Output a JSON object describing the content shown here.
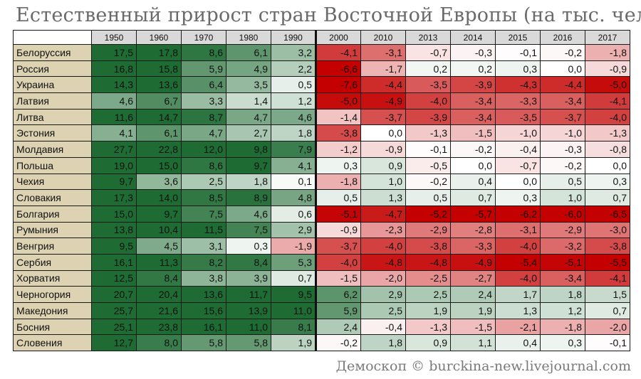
{
  "title": "Естественный прирост стран Восточной Европы (на тыс. чел)",
  "credit": "Демоскоп © burckina-new.livejournal.com",
  "chart_data": {
    "type": "table",
    "title": "Естественный прирост стран Восточной Европы (на тыс. чел)",
    "years": [
      "1950",
      "1960",
      "1970",
      "1980",
      "1990",
      "2000",
      "2010",
      "2013",
      "2014",
      "2015",
      "2016",
      "2017"
    ],
    "rows": [
      {
        "country": "Белоруссия",
        "values": [
          "17,5",
          "17,8",
          "8,6",
          "6,1",
          "3,2",
          "-4,1",
          "-3,1",
          "-0,7",
          "-0,3",
          "-0,1",
          "-0,2",
          "-1,8"
        ]
      },
      {
        "country": "Россия",
        "values": [
          "16,8",
          "15,8",
          "5,9",
          "4,9",
          "2,2",
          "-6,6",
          "-1,7",
          "0,2",
          "0,2",
          "0,3",
          "0,0",
          "-0,9"
        ]
      },
      {
        "country": "Украина",
        "values": [
          "14,3",
          "13,6",
          "6,4",
          "3,5",
          "0,5",
          "-7,6",
          "-4,4",
          "-3,5",
          "-3,9",
          "-4,3",
          "-4,4",
          "-5,0"
        ]
      },
      {
        "country": "Латвия",
        "values": [
          "4,6",
          "6,7",
          "3,3",
          "1,4",
          "1,2",
          "-5,0",
          "-4,9",
          "-4,0",
          "-3,4",
          "-3,3",
          "-3,4",
          "-4,1"
        ]
      },
      {
        "country": "Литва",
        "values": [
          "11,6",
          "14,7",
          "8,7",
          "4,7",
          "4,6",
          "-1,4",
          "-3,7",
          "-3,9",
          "-3,4",
          "-3,5",
          "-3,7",
          "-4,0"
        ]
      },
      {
        "country": "Эстония",
        "values": [
          "4,1",
          "6,1",
          "4,7",
          "2,7",
          "1,8",
          "-3,8",
          "0,0",
          "-1,3",
          "-1,5",
          "-1,0",
          "-1,0",
          "-1,3"
        ]
      },
      {
        "country": "Молдавия",
        "values": [
          "27,7",
          "22,8",
          "12,0",
          "9,8",
          "7,9",
          "-1,2",
          "-0,9",
          "-0,1",
          "-0,2",
          "-0,4",
          "-0,3",
          "-0,8"
        ]
      },
      {
        "country": "Польша",
        "values": [
          "19,0",
          "15,0",
          "8,6",
          "9,7",
          "4,1",
          "0,3",
          "0,9",
          "-0,5",
          "0,0",
          "-0,7",
          "-0,2",
          "0,0"
        ]
      },
      {
        "country": "Чехия",
        "values": [
          "9,7",
          "3,6",
          "2,5",
          "1,8",
          "0,1",
          "-1,8",
          "1,0",
          "-0,2",
          "0,4",
          "0,0",
          "0,5",
          "0,3"
        ]
      },
      {
        "country": "Словакия",
        "values": [
          "17,3",
          "14,0",
          "8,5",
          "8,9",
          "4,8",
          "0,5",
          "1,3",
          "0,5",
          "0,7",
          "0,3",
          "1,0",
          "0,7"
        ]
      },
      {
        "country": "Болгария",
        "values": [
          "15,0",
          "9,7",
          "7,5",
          "4,6",
          "0,6",
          "-5,1",
          "-4,7",
          "-5,2",
          "-5,7",
          "-6,2",
          "-6,0",
          "-6,5"
        ]
      },
      {
        "country": "Румыния",
        "values": [
          "13,8",
          "10,4",
          "11,5",
          "7,5",
          "2,9",
          "-0,9",
          "-2,3",
          "-2,9",
          "-2,8",
          "-3,1",
          "-2,9",
          "-3,0"
        ]
      },
      {
        "country": "Венгрия",
        "values": [
          "9,5",
          "4,5",
          "3,1",
          "0,3",
          "-1,9",
          "-3,7",
          "-4,0",
          "-3,8",
          "-3,3",
          "-4,0",
          "-3,2",
          "-3,8"
        ]
      },
      {
        "country": "Сербия",
        "values": [
          "16,1",
          "11,3",
          "8,2",
          "8,4",
          "5,3",
          "-4,0",
          "-4,8",
          "-4,8",
          "-4,9",
          "-5,4",
          "-5,1",
          "-5,5"
        ]
      },
      {
        "country": "Хорватия",
        "values": [
          "12,5",
          "8,4",
          "3,8",
          "3,9",
          "0,7",
          "-1,5",
          "-2,0",
          "-2,5",
          "-2,7",
          "-4,0",
          "-3,4",
          "-4,1"
        ]
      },
      {
        "country": "Черногория",
        "values": [
          "20,7",
          "20,4",
          "13,6",
          "11,7",
          "9,5",
          "6,2",
          "2,9",
          "2,5",
          "2,4",
          "1,7",
          "1,8",
          "1,5"
        ]
      },
      {
        "country": "Македония",
        "values": [
          "25,7",
          "21,6",
          "15,6",
          "13,9",
          "11,0",
          "5,9",
          "2,5",
          "1,9",
          "1,9",
          "1,3",
          "1,2",
          "0,7"
        ]
      },
      {
        "country": "Босния",
        "values": [
          "25,1",
          "23,8",
          "16,1",
          "11,0",
          "8,1",
          "2,4",
          "-0,4",
          "-1,3",
          "-1,5",
          "-2,1",
          "-1,8",
          "-2,0"
        ]
      },
      {
        "country": "Словения",
        "values": [
          "12,7",
          "8,0",
          "5,8",
          "5,8",
          "1,9",
          "-0,2",
          "1,8",
          "0,9",
          "1,1",
          "0,4",
          "0,3",
          "-0,1"
        ]
      }
    ],
    "color_scale": {
      "positive_max": "#1e6b33",
      "neutral": "#ffffff",
      "negative_max": "#c40000"
    }
  }
}
